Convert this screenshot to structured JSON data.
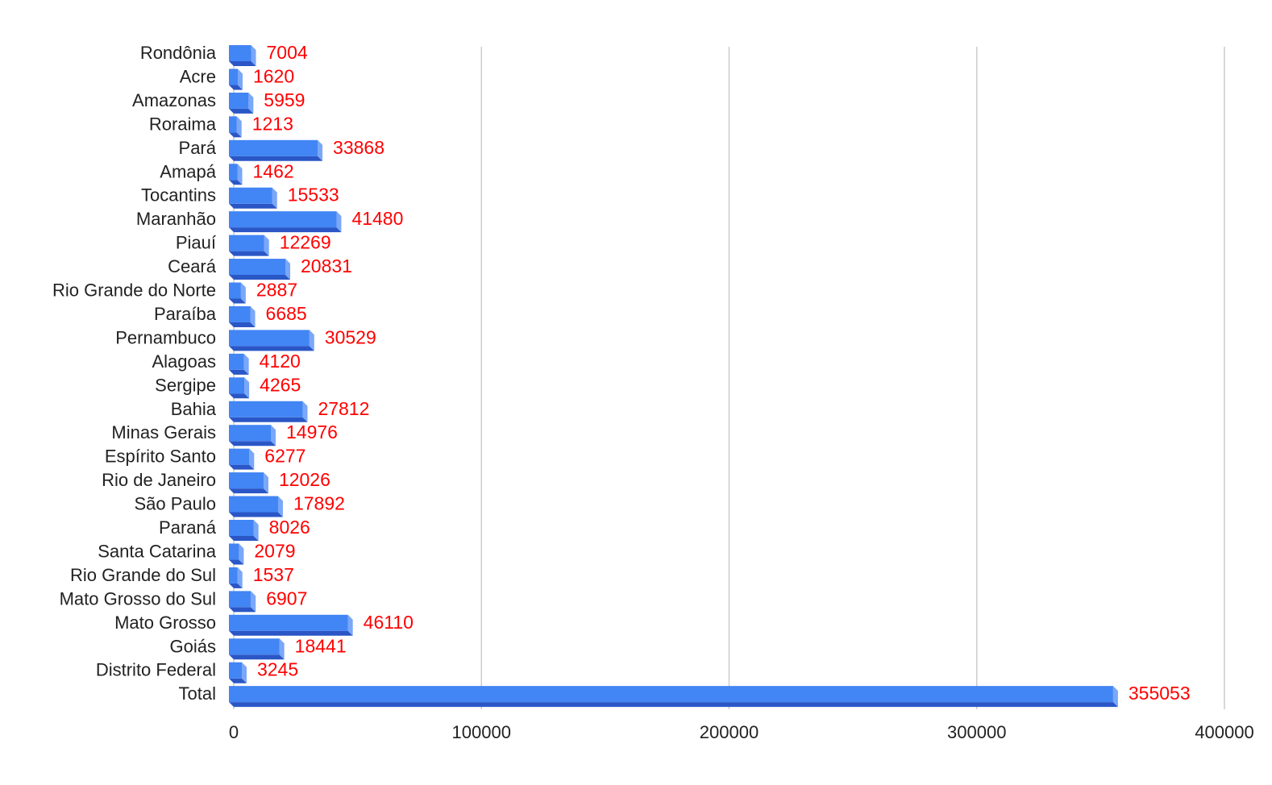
{
  "chart_data": {
    "type": "bar",
    "orientation": "horizontal",
    "style": "3d",
    "categories": [
      "Rondônia",
      "Acre",
      "Amazonas",
      "Roraima",
      "Pará",
      "Amapá",
      "Tocantins",
      "Maranhão",
      "Piauí",
      "Ceará",
      "Rio Grande do Norte",
      "Paraíba",
      "Pernambuco",
      "Alagoas",
      "Sergipe",
      "Bahia",
      "Minas Gerais",
      "Espírito Santo",
      "Rio de Janeiro",
      "São Paulo",
      "Paraná",
      "Santa Catarina",
      "Rio Grande do Sul",
      "Mato Grosso do Sul",
      "Mato Grosso",
      "Goiás",
      "Distrito Federal",
      "Total"
    ],
    "values": [
      7004,
      1620,
      5959,
      1213,
      33868,
      1462,
      15533,
      41480,
      12269,
      20831,
      2887,
      6685,
      30529,
      4120,
      4265,
      27812,
      14976,
      6277,
      12026,
      17892,
      8026,
      2079,
      1537,
      6907,
      46110,
      18441,
      3245,
      355053
    ],
    "data_labels": [
      "7004",
      "1620",
      "5959",
      "1213",
      "33868",
      "1462",
      "15533",
      "41480",
      "12269",
      "20831",
      "2887",
      "6685",
      "30529",
      "4120",
      "4265",
      "27812",
      "14976",
      "6277",
      "12026",
      "17892",
      "8026",
      "2079",
      "1537",
      "6907",
      "46110",
      "18441",
      "3245",
      "355053"
    ],
    "title": "",
    "xlabel": "",
    "ylabel": "",
    "xlim": [
      0,
      400000
    ],
    "x_ticks": [
      0,
      100000,
      200000,
      300000,
      400000
    ],
    "x_tick_labels": [
      "0",
      "100000",
      "200000",
      "300000",
      "400000"
    ],
    "grid": "vertical",
    "legend": "none",
    "colors": {
      "bar_front": "#4285f4",
      "bar_side": "#7aa7f7",
      "bar_bottom": "#2a56c6",
      "data_label": "#ff0000",
      "grid": "#cccccc",
      "text": "#222222"
    }
  }
}
